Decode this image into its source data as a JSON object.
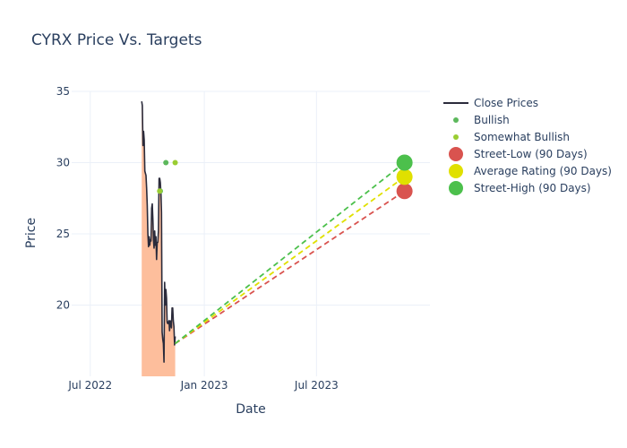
{
  "chart_data": {
    "type": "line",
    "title": "CYRX Price Vs. Targets",
    "xlabel": "Date",
    "ylabel": "Price",
    "xlim": [
      "2022-06-01",
      "2023-12-31"
    ],
    "ylim": [
      15,
      35
    ],
    "x_ticks": [
      {
        "date": "2022-07-01",
        "label": "Jul 2022"
      },
      {
        "date": "2023-01-01",
        "label": "Jan 2023"
      },
      {
        "date": "2023-07-01",
        "label": "Jul 2023"
      }
    ],
    "y_ticks": [
      20,
      25,
      30,
      35
    ],
    "grid": true,
    "legend_position": "right",
    "close_prices": {
      "name": "Close Prices",
      "color": "#2b2b3b",
      "fill_color": "#fdbe9c",
      "points": [
        [
          "2022-09-22",
          34.3
        ],
        [
          "2022-09-23",
          34.0
        ],
        [
          "2022-09-24",
          31.2
        ],
        [
          "2022-09-25",
          32.2
        ],
        [
          "2022-09-26",
          31.6
        ],
        [
          "2022-09-27",
          29.4
        ],
        [
          "2022-09-29",
          29.1
        ],
        [
          "2022-09-30",
          28.2
        ],
        [
          "2022-10-01",
          27.0
        ],
        [
          "2022-10-02",
          25.0
        ],
        [
          "2022-10-03",
          24.1
        ],
        [
          "2022-10-04",
          24.8
        ],
        [
          "2022-10-05",
          24.2
        ],
        [
          "2022-10-06",
          24.6
        ],
        [
          "2022-10-07",
          24.5
        ],
        [
          "2022-10-08",
          26.8
        ],
        [
          "2022-10-09",
          27.1
        ],
        [
          "2022-10-10",
          26.0
        ],
        [
          "2022-10-11",
          24.6
        ],
        [
          "2022-10-12",
          24.0
        ],
        [
          "2022-10-13",
          25.2
        ],
        [
          "2022-10-14",
          24.2
        ],
        [
          "2022-10-15",
          24.8
        ],
        [
          "2022-10-16",
          23.2
        ],
        [
          "2022-10-17",
          24.4
        ],
        [
          "2022-10-18",
          24.4
        ],
        [
          "2022-10-19",
          25.2
        ],
        [
          "2022-10-20",
          28.9
        ],
        [
          "2022-10-21",
          28.9
        ],
        [
          "2022-10-22",
          28.6
        ],
        [
          "2022-10-23",
          27.8
        ],
        [
          "2022-10-24",
          26.5
        ],
        [
          "2022-10-25",
          18.1
        ],
        [
          "2022-10-26",
          17.6
        ],
        [
          "2022-10-27",
          17.3
        ],
        [
          "2022-10-28",
          16.0
        ],
        [
          "2022-10-29",
          21.6
        ],
        [
          "2022-10-30",
          20.0
        ],
        [
          "2022-10-31",
          21.1
        ],
        [
          "2022-11-01",
          20.5
        ],
        [
          "2022-11-02",
          18.8
        ],
        [
          "2022-11-03",
          18.7
        ],
        [
          "2022-11-04",
          18.8
        ],
        [
          "2022-11-05",
          18.9
        ],
        [
          "2022-11-06",
          18.2
        ],
        [
          "2022-11-07",
          18.9
        ],
        [
          "2022-11-08",
          18.7
        ],
        [
          "2022-11-09",
          18.4
        ],
        [
          "2022-11-10",
          19.8
        ],
        [
          "2022-11-11",
          19.8
        ],
        [
          "2022-11-12",
          18.9
        ],
        [
          "2022-11-13",
          18.5
        ],
        [
          "2022-11-14",
          17.2
        ],
        [
          "2022-11-15",
          17.8
        ]
      ]
    },
    "ratings": [
      {
        "name": "Bullish",
        "color": "#5cb85c",
        "points": [
          [
            "2022-10-22",
            28.0
          ],
          [
            "2022-10-31",
            30.0
          ]
        ]
      },
      {
        "name": "Somewhat Bullish",
        "color": "#9acd32",
        "points": [
          [
            "2022-10-21",
            28.0
          ],
          [
            "2022-11-15",
            30.0
          ]
        ]
      }
    ],
    "targets": [
      {
        "name": "Street-Low (90 Days)",
        "color": "#d9534f",
        "start": [
          "2022-11-15",
          17.3
        ],
        "end": [
          "2023-11-20",
          28.0
        ]
      },
      {
        "name": "Average Rating (90 Days)",
        "color": "#e0e000",
        "start": [
          "2022-11-15",
          17.3
        ],
        "end": [
          "2023-11-20",
          29.0
        ]
      },
      {
        "name": "Street-High (90 Days)",
        "color": "#4cc04c",
        "start": [
          "2022-11-15",
          17.3
        ],
        "end": [
          "2023-11-20",
          30.0
        ]
      }
    ]
  }
}
